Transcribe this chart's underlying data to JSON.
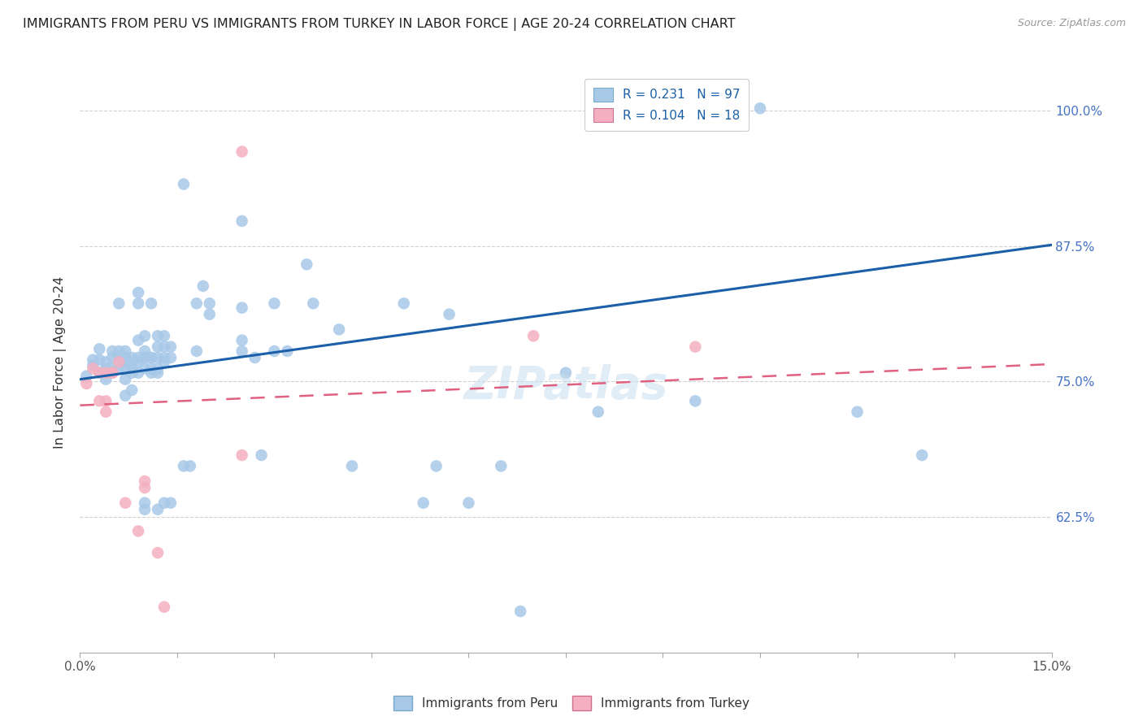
{
  "title": "IMMIGRANTS FROM PERU VS IMMIGRANTS FROM TURKEY IN LABOR FORCE | AGE 20-24 CORRELATION CHART",
  "source": "Source: ZipAtlas.com",
  "ylabel": "In Labor Force | Age 20-24",
  "xmin": 0.0,
  "xmax": 0.15,
  "ymin": 0.5,
  "ymax": 1.035,
  "yticks": [
    0.625,
    0.75,
    0.875,
    1.0
  ],
  "ytick_labels": [
    "62.5%",
    "75.0%",
    "87.5%",
    "100.0%"
  ],
  "xtick_positions": [
    0.0,
    0.015,
    0.03,
    0.045,
    0.06,
    0.075,
    0.09,
    0.105,
    0.12,
    0.135,
    0.15
  ],
  "bottom_legend": [
    "Immigrants from Peru",
    "Immigrants from Turkey"
  ],
  "peru_color": "#a8c8e8",
  "turkey_color": "#f4b0c0",
  "trend_peru_color": "#1a5fa8",
  "trend_turkey_color": "#e06080",
  "peru_scatter": [
    [
      0.001,
      0.755
    ],
    [
      0.002,
      0.77
    ],
    [
      0.002,
      0.765
    ],
    [
      0.003,
      0.78
    ],
    [
      0.003,
      0.77
    ],
    [
      0.003,
      0.758
    ],
    [
      0.004,
      0.762
    ],
    [
      0.004,
      0.768
    ],
    [
      0.004,
      0.752
    ],
    [
      0.005,
      0.778
    ],
    [
      0.005,
      0.762
    ],
    [
      0.005,
      0.772
    ],
    [
      0.005,
      0.758
    ],
    [
      0.006,
      0.778
    ],
    [
      0.006,
      0.822
    ],
    [
      0.006,
      0.772
    ],
    [
      0.006,
      0.762
    ],
    [
      0.007,
      0.772
    ],
    [
      0.007,
      0.762
    ],
    [
      0.007,
      0.752
    ],
    [
      0.007,
      0.737
    ],
    [
      0.007,
      0.778
    ],
    [
      0.007,
      0.768
    ],
    [
      0.008,
      0.772
    ],
    [
      0.008,
      0.762
    ],
    [
      0.008,
      0.758
    ],
    [
      0.008,
      0.742
    ],
    [
      0.008,
      0.768
    ],
    [
      0.009,
      0.832
    ],
    [
      0.009,
      0.822
    ],
    [
      0.009,
      0.788
    ],
    [
      0.009,
      0.772
    ],
    [
      0.009,
      0.768
    ],
    [
      0.009,
      0.758
    ],
    [
      0.01,
      0.792
    ],
    [
      0.01,
      0.778
    ],
    [
      0.01,
      0.772
    ],
    [
      0.01,
      0.772
    ],
    [
      0.01,
      0.762
    ],
    [
      0.01,
      0.632
    ],
    [
      0.01,
      0.638
    ],
    [
      0.011,
      0.822
    ],
    [
      0.011,
      0.772
    ],
    [
      0.011,
      0.772
    ],
    [
      0.011,
      0.762
    ],
    [
      0.011,
      0.758
    ],
    [
      0.012,
      0.792
    ],
    [
      0.012,
      0.782
    ],
    [
      0.012,
      0.772
    ],
    [
      0.012,
      0.762
    ],
    [
      0.012,
      0.758
    ],
    [
      0.012,
      0.632
    ],
    [
      0.013,
      0.792
    ],
    [
      0.013,
      0.772
    ],
    [
      0.013,
      0.768
    ],
    [
      0.013,
      0.782
    ],
    [
      0.013,
      0.638
    ],
    [
      0.014,
      0.782
    ],
    [
      0.014,
      0.772
    ],
    [
      0.014,
      0.638
    ],
    [
      0.016,
      0.932
    ],
    [
      0.016,
      0.672
    ],
    [
      0.017,
      0.672
    ],
    [
      0.018,
      0.822
    ],
    [
      0.018,
      0.778
    ],
    [
      0.019,
      0.838
    ],
    [
      0.02,
      0.822
    ],
    [
      0.02,
      0.812
    ],
    [
      0.025,
      0.898
    ],
    [
      0.025,
      0.818
    ],
    [
      0.025,
      0.788
    ],
    [
      0.025,
      0.778
    ],
    [
      0.027,
      0.772
    ],
    [
      0.028,
      0.682
    ],
    [
      0.03,
      0.822
    ],
    [
      0.03,
      0.778
    ],
    [
      0.032,
      0.778
    ],
    [
      0.035,
      0.858
    ],
    [
      0.036,
      0.822
    ],
    [
      0.04,
      0.798
    ],
    [
      0.042,
      0.672
    ],
    [
      0.05,
      0.822
    ],
    [
      0.053,
      0.638
    ],
    [
      0.055,
      0.672
    ],
    [
      0.057,
      0.812
    ],
    [
      0.06,
      0.638
    ],
    [
      0.065,
      0.672
    ],
    [
      0.068,
      0.538
    ],
    [
      0.075,
      0.758
    ],
    [
      0.08,
      0.722
    ],
    [
      0.095,
      0.732
    ],
    [
      0.1,
      0.99
    ],
    [
      0.105,
      1.002
    ],
    [
      0.12,
      0.722
    ],
    [
      0.13,
      0.682
    ]
  ],
  "turkey_scatter": [
    [
      0.001,
      0.748
    ],
    [
      0.002,
      0.762
    ],
    [
      0.003,
      0.758
    ],
    [
      0.003,
      0.732
    ],
    [
      0.004,
      0.758
    ],
    [
      0.004,
      0.732
    ],
    [
      0.004,
      0.722
    ],
    [
      0.005,
      0.758
    ],
    [
      0.005,
      0.758
    ],
    [
      0.006,
      0.768
    ],
    [
      0.007,
      0.638
    ],
    [
      0.009,
      0.612
    ],
    [
      0.01,
      0.658
    ],
    [
      0.01,
      0.652
    ],
    [
      0.012,
      0.592
    ],
    [
      0.013,
      0.542
    ],
    [
      0.025,
      0.962
    ],
    [
      0.025,
      0.682
    ],
    [
      0.07,
      0.792
    ],
    [
      0.095,
      0.782
    ]
  ],
  "peru_trend_x": [
    0.0,
    0.15
  ],
  "peru_trend_y": [
    0.752,
    0.876
  ],
  "turkey_trend_x": [
    0.0,
    0.15
  ],
  "turkey_trend_y": [
    0.728,
    0.766
  ]
}
